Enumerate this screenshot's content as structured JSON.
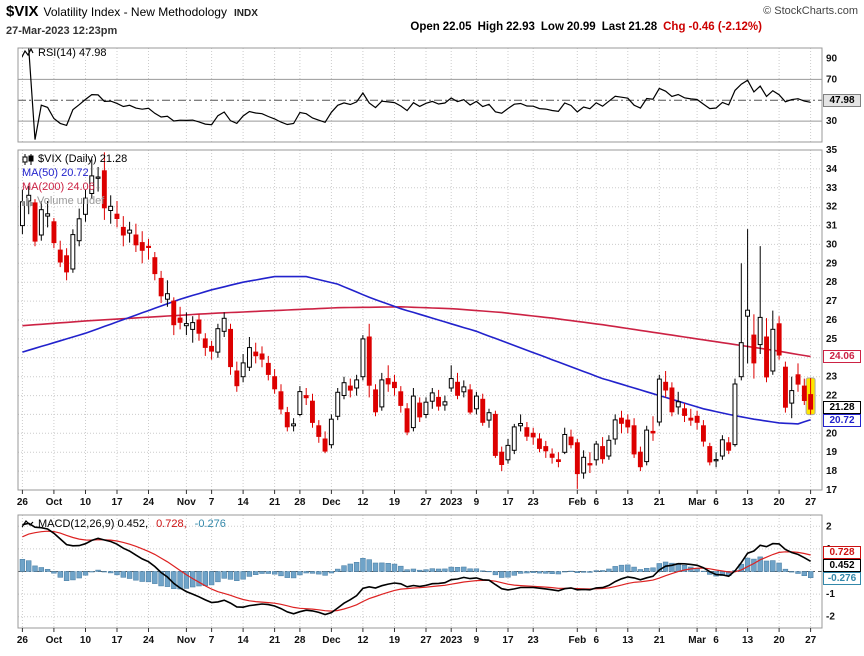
{
  "header": {
    "symbol": "$VIX",
    "name": "Volatility Index - New Methodology",
    "exchange": "INDX",
    "copyright": "© StockCharts.com",
    "datetime": "27-Mar-2023 12:23pm",
    "quote": {
      "open_label": "Open",
      "open": "22.05",
      "high_label": "High",
      "high": "22.93",
      "low_label": "Low",
      "low": "20.99",
      "last_label": "Last",
      "last": "21.28",
      "chg_label": "Chg",
      "chg": "-0.46 (-2.12%)"
    }
  },
  "rsi_panel": {
    "legend": "RSI(14) 47.98",
    "value_label": "47.98",
    "ticks": [
      {
        "v": 90,
        "label": "90"
      },
      {
        "v": 70,
        "label": "70"
      },
      {
        "v": 30,
        "label": "30"
      }
    ]
  },
  "main_panel": {
    "legend_symbol": "$VIX (Daily) 21.28",
    "legend_ma50": "MA(50) 20.72",
    "legend_ma200": "MA(200) 24.06",
    "legend_volume": "Volume undef",
    "ma200_label": "24.06",
    "last_label": "21.28",
    "ma50_label": "20.72"
  },
  "macd_panel": {
    "legend_macd": "MACD(12,26,9) 0.452,",
    "legend_signal": "0.728,",
    "legend_hist": "-0.276",
    "signal_label": "0.728",
    "macd_label": "0.452",
    "hist_label": "-0.276"
  },
  "colors": {
    "up": "#000000",
    "up_fill": "#ffffff",
    "down": "#dd0000",
    "ma50": "#2222cc",
    "ma200": "#cc2244",
    "grid": "#cccccc",
    "panel_border": "#999999",
    "rsi": "#000000",
    "band_line": "#999999",
    "mid_line": "#555555",
    "macd": "#000000",
    "signal": "#dd2222",
    "hist_fill": "#6fa3c8",
    "hist_stroke": "#4f83a8",
    "highlight": "#ffe600",
    "tick_text": "#111111"
  },
  "chart_data": {
    "type": "candlestick",
    "symbol": "$VIX",
    "timeframe": "Daily",
    "title": "$VIX Volatility Index - New Methodology INDX",
    "main_ylim": [
      17,
      35
    ],
    "macd_ylim": [
      -2.5,
      2.5
    ],
    "rsi": {
      "period": 14,
      "last": 47.98,
      "overbought": 70,
      "oversold": 30,
      "mid": 50
    },
    "macd": {
      "fast": 12,
      "slow": 26,
      "signal_period": 9,
      "last_macd": 0.452,
      "last_signal": 0.728,
      "last_hist": -0.276,
      "seeds": {
        "ema12": 29.5,
        "ema26": 27.5,
        "signal": 1.4
      }
    },
    "ma50_last": 20.72,
    "ma200_last": 24.06,
    "macd_ticks": [
      2,
      1,
      0,
      -1,
      -2
    ],
    "x_axis": {
      "tick_indices": [
        0,
        5,
        10,
        15,
        20,
        26,
        30,
        35,
        40,
        44,
        49,
        54,
        59,
        64,
        68,
        72,
        77,
        81,
        88,
        91,
        96,
        101,
        107,
        110,
        115,
        120,
        125
      ],
      "tick_labels": [
        "26",
        "Oct",
        "10",
        "17",
        "24",
        "Nov",
        "7",
        "14",
        "21",
        "28",
        "Dec",
        "12",
        "19",
        "27",
        "2023",
        "9",
        "17",
        "23",
        "Feb",
        "6",
        "13",
        "21",
        "Mar",
        "6",
        "13",
        "20",
        "27"
      ]
    },
    "ohlc": [
      [
        31.0,
        32.9,
        30.55,
        32.26
      ],
      [
        32.3,
        33.1,
        31.6,
        32.6
      ],
      [
        32.2,
        32.4,
        29.9,
        30.18
      ],
      [
        30.5,
        32.3,
        30.2,
        31.84
      ],
      [
        31.5,
        32.3,
        30.9,
        31.62
      ],
      [
        31.2,
        31.4,
        29.8,
        30.1
      ],
      [
        29.7,
        30.2,
        28.8,
        29.07
      ],
      [
        29.4,
        29.8,
        28.1,
        28.55
      ],
      [
        28.7,
        30.8,
        28.5,
        30.52
      ],
      [
        30.2,
        31.9,
        29.9,
        31.36
      ],
      [
        31.6,
        32.9,
        31.2,
        32.45
      ],
      [
        32.7,
        34.5,
        32.4,
        33.63
      ],
      [
        33.5,
        34.1,
        32.8,
        33.57
      ],
      [
        33.9,
        34.88,
        31.3,
        31.94
      ],
      [
        31.8,
        32.6,
        31.1,
        32.02
      ],
      [
        31.6,
        32.3,
        30.9,
        31.37
      ],
      [
        30.9,
        31.5,
        29.9,
        30.5
      ],
      [
        30.6,
        31.2,
        30.1,
        30.76
      ],
      [
        30.5,
        31.1,
        29.6,
        29.98
      ],
      [
        30.1,
        30.7,
        29.0,
        29.69
      ],
      [
        29.9,
        30.3,
        29.2,
        29.85
      ],
      [
        29.3,
        29.6,
        28.1,
        28.46
      ],
      [
        28.2,
        28.6,
        26.9,
        27.28
      ],
      [
        27.1,
        28.1,
        26.7,
        27.39
      ],
      [
        27.0,
        27.2,
        25.2,
        25.75
      ],
      [
        26.1,
        26.7,
        25.5,
        25.88
      ],
      [
        25.7,
        26.4,
        25.2,
        25.81
      ],
      [
        25.5,
        26.2,
        24.8,
        25.86
      ],
      [
        26.0,
        26.3,
        24.9,
        25.3
      ],
      [
        25.0,
        25.3,
        24.1,
        24.55
      ],
      [
        24.6,
        24.9,
        23.9,
        24.35
      ],
      [
        24.3,
        25.8,
        24.0,
        25.54
      ],
      [
        25.4,
        26.4,
        25.1,
        26.09
      ],
      [
        25.5,
        25.8,
        23.1,
        23.53
      ],
      [
        23.3,
        23.8,
        22.2,
        22.52
      ],
      [
        23.0,
        24.2,
        22.7,
        23.73
      ],
      [
        23.5,
        25.1,
        23.3,
        24.54
      ],
      [
        24.3,
        24.8,
        23.7,
        24.11
      ],
      [
        24.2,
        24.6,
        23.5,
        23.93
      ],
      [
        23.7,
        24.1,
        22.8,
        23.12
      ],
      [
        23.0,
        23.4,
        22.1,
        22.36
      ],
      [
        22.2,
        22.6,
        21.0,
        21.29
      ],
      [
        21.1,
        21.4,
        20.1,
        20.35
      ],
      [
        20.4,
        20.8,
        20.1,
        20.5
      ],
      [
        21.0,
        22.5,
        20.9,
        22.21
      ],
      [
        22.0,
        22.4,
        21.5,
        21.89
      ],
      [
        21.7,
        22.1,
        20.3,
        20.58
      ],
      [
        20.4,
        20.7,
        19.5,
        19.84
      ],
      [
        19.7,
        20.1,
        18.95,
        19.06
      ],
      [
        19.4,
        21.0,
        19.2,
        20.75
      ],
      [
        20.9,
        22.4,
        20.7,
        22.17
      ],
      [
        22.0,
        23.0,
        21.8,
        22.68
      ],
      [
        22.5,
        22.9,
        21.9,
        22.29
      ],
      [
        22.4,
        23.1,
        22.0,
        22.83
      ],
      [
        23.0,
        25.2,
        22.8,
        25.0
      ],
      [
        25.1,
        25.8,
        21.9,
        22.55
      ],
      [
        22.3,
        22.6,
        20.9,
        21.14
      ],
      [
        21.4,
        23.2,
        21.2,
        22.83
      ],
      [
        22.9,
        23.6,
        22.2,
        22.62
      ],
      [
        22.7,
        23.1,
        22.0,
        22.42
      ],
      [
        22.2,
        22.5,
        21.1,
        21.48
      ],
      [
        21.3,
        21.6,
        19.9,
        20.07
      ],
      [
        20.3,
        22.4,
        20.1,
        21.97
      ],
      [
        21.6,
        21.9,
        20.6,
        20.87
      ],
      [
        21.0,
        21.9,
        20.8,
        21.65
      ],
      [
        21.7,
        22.4,
        21.3,
        22.14
      ],
      [
        21.9,
        22.3,
        21.2,
        21.44
      ],
      [
        21.5,
        22.0,
        21.2,
        21.67
      ],
      [
        22.4,
        23.6,
        22.2,
        22.9
      ],
      [
        22.7,
        23.2,
        21.8,
        22.01
      ],
      [
        22.2,
        22.8,
        21.9,
        22.46
      ],
      [
        22.3,
        22.6,
        21.0,
        21.13
      ],
      [
        21.3,
        22.2,
        21.0,
        21.97
      ],
      [
        21.8,
        22.1,
        20.4,
        20.58
      ],
      [
        20.7,
        21.3,
        20.3,
        21.09
      ],
      [
        21.0,
        21.2,
        18.7,
        18.83
      ],
      [
        19.0,
        19.3,
        18.0,
        18.35
      ],
      [
        18.6,
        19.7,
        18.4,
        19.36
      ],
      [
        19.1,
        20.5,
        18.9,
        20.34
      ],
      [
        20.4,
        21.0,
        20.1,
        20.52
      ],
      [
        20.3,
        20.6,
        19.6,
        19.85
      ],
      [
        20.0,
        20.3,
        19.4,
        19.81
      ],
      [
        19.7,
        20.0,
        19.0,
        19.2
      ],
      [
        19.3,
        19.6,
        18.7,
        19.08
      ],
      [
        18.9,
        19.2,
        18.4,
        18.73
      ],
      [
        18.6,
        19.0,
        18.2,
        18.51
      ],
      [
        19.0,
        20.3,
        18.9,
        19.94
      ],
      [
        19.8,
        20.2,
        19.2,
        19.4
      ],
      [
        19.5,
        19.7,
        17.06,
        17.87
      ],
      [
        17.9,
        19.1,
        17.6,
        18.73
      ],
      [
        18.4,
        19.0,
        17.9,
        18.33
      ],
      [
        18.6,
        19.6,
        18.3,
        19.43
      ],
      [
        19.3,
        19.8,
        18.4,
        18.66
      ],
      [
        18.8,
        19.9,
        18.6,
        19.63
      ],
      [
        19.7,
        21.0,
        19.4,
        20.71
      ],
      [
        20.8,
        21.2,
        20.0,
        20.53
      ],
      [
        20.7,
        21.0,
        20.0,
        20.34
      ],
      [
        20.4,
        20.8,
        18.7,
        18.91
      ],
      [
        19.0,
        19.3,
        18.0,
        18.23
      ],
      [
        18.5,
        20.4,
        18.3,
        20.17
      ],
      [
        20.1,
        20.9,
        19.6,
        20.02
      ],
      [
        20.6,
        23.1,
        20.4,
        22.87
      ],
      [
        22.7,
        23.3,
        21.9,
        22.29
      ],
      [
        22.4,
        22.7,
        20.9,
        21.14
      ],
      [
        21.4,
        22.2,
        21.0,
        21.67
      ],
      [
        21.3,
        21.6,
        20.6,
        20.95
      ],
      [
        20.8,
        21.3,
        20.4,
        20.7
      ],
      [
        20.9,
        21.2,
        20.2,
        20.58
      ],
      [
        20.4,
        20.7,
        19.3,
        19.59
      ],
      [
        19.3,
        19.5,
        18.3,
        18.49
      ],
      [
        18.6,
        19.0,
        18.2,
        18.61
      ],
      [
        18.8,
        19.9,
        18.6,
        19.66
      ],
      [
        19.5,
        19.8,
        18.9,
        19.11
      ],
      [
        19.4,
        22.9,
        19.3,
        22.61
      ],
      [
        23.0,
        29.0,
        22.8,
        24.8
      ],
      [
        26.2,
        30.81,
        23.7,
        26.52
      ],
      [
        25.2,
        26.3,
        22.9,
        23.73
      ],
      [
        24.7,
        29.91,
        24.2,
        26.14
      ],
      [
        25.1,
        26.1,
        22.7,
        22.99
      ],
      [
        23.3,
        26.5,
        23.1,
        25.51
      ],
      [
        25.8,
        26.2,
        23.9,
        24.15
      ],
      [
        23.5,
        23.8,
        21.1,
        21.38
      ],
      [
        21.6,
        23.0,
        20.8,
        22.26
      ],
      [
        23.1,
        23.7,
        22.2,
        22.61
      ],
      [
        22.5,
        22.9,
        21.5,
        21.74
      ],
      [
        22.05,
        22.93,
        20.99,
        21.28
      ]
    ],
    "ma50_keypoints": [
      [
        0,
        24.3
      ],
      [
        5,
        24.8
      ],
      [
        10,
        25.3
      ],
      [
        15,
        25.9
      ],
      [
        20,
        26.5
      ],
      [
        25,
        27.1
      ],
      [
        30,
        27.6
      ],
      [
        35,
        28.0
      ],
      [
        40,
        28.3
      ],
      [
        45,
        28.3
      ],
      [
        50,
        27.9
      ],
      [
        55,
        27.2
      ],
      [
        60,
        26.6
      ],
      [
        64,
        26.2
      ],
      [
        68,
        25.8
      ],
      [
        72,
        25.4
      ],
      [
        76,
        24.9
      ],
      [
        80,
        24.4
      ],
      [
        84,
        23.9
      ],
      [
        88,
        23.4
      ],
      [
        92,
        22.9
      ],
      [
        96,
        22.5
      ],
      [
        100,
        22.1
      ],
      [
        104,
        21.7
      ],
      [
        108,
        21.3
      ],
      [
        112,
        21.0
      ],
      [
        116,
        20.75
      ],
      [
        120,
        20.55
      ],
      [
        123,
        20.5
      ],
      [
        125,
        20.72
      ]
    ],
    "ma200_keypoints": [
      [
        0,
        25.7
      ],
      [
        10,
        25.95
      ],
      [
        20,
        26.15
      ],
      [
        30,
        26.35
      ],
      [
        40,
        26.5
      ],
      [
        50,
        26.65
      ],
      [
        60,
        26.7
      ],
      [
        68,
        26.6
      ],
      [
        76,
        26.4
      ],
      [
        84,
        26.1
      ],
      [
        92,
        25.75
      ],
      [
        100,
        25.35
      ],
      [
        108,
        24.95
      ],
      [
        115,
        24.6
      ],
      [
        120,
        24.35
      ],
      [
        125,
        24.06
      ]
    ]
  }
}
